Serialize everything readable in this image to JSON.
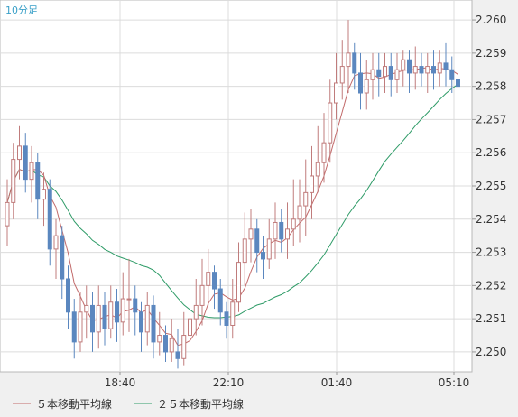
{
  "chart_data": {
    "type": "candlestick",
    "title": "10分足",
    "xlabel": "",
    "ylabel": "",
    "x_ticks": [
      "18:40",
      "22:10",
      "01:40",
      "05:10"
    ],
    "ylim": [
      2.2494,
      2.2606
    ],
    "y_ticks": [
      "2.250",
      "2.251",
      "2.252",
      "2.253",
      "2.254",
      "2.255",
      "2.256",
      "2.257",
      "2.258",
      "2.259",
      "2.260"
    ],
    "grid": true,
    "legend": "bottom-left",
    "legend_items": [
      {
        "label": "５本移動平均線",
        "color": "#c26a6a"
      },
      {
        "label": "２５本移動平均線",
        "color": "#2e9b67"
      }
    ],
    "colors": {
      "up": "#c07c7c",
      "down": "#5b87bf",
      "ma5": "#c26a6a",
      "ma25": "#2e9b67"
    },
    "candles": [
      [
        2.2538,
        2.2545,
        2.2532,
        2.2552
      ],
      [
        2.2545,
        2.2558,
        2.254,
        2.2563
      ],
      [
        2.2558,
        2.2562,
        2.2552,
        2.2568
      ],
      [
        2.2562,
        2.2552,
        2.2548,
        2.2566
      ],
      [
        2.2552,
        2.2557,
        2.2545,
        2.2562
      ],
      [
        2.2557,
        2.2546,
        2.254,
        2.256
      ],
      [
        2.2546,
        2.2549,
        2.2538,
        2.2554
      ],
      [
        2.2549,
        2.2531,
        2.2526,
        2.2552
      ],
      [
        2.2531,
        2.2535,
        2.2522,
        2.254
      ],
      [
        2.2535,
        2.2522,
        2.2516,
        2.2538
      ],
      [
        2.2522,
        2.2512,
        2.2507,
        2.2526
      ],
      [
        2.2512,
        2.2503,
        2.2498,
        2.2516
      ],
      [
        2.2503,
        2.2512,
        2.25,
        2.2518
      ],
      [
        2.2512,
        2.2514,
        2.2504,
        2.252
      ],
      [
        2.2514,
        2.2506,
        2.25,
        2.2518
      ],
      [
        2.2506,
        2.2514,
        2.2501,
        2.252
      ],
      [
        2.2514,
        2.2507,
        2.2502,
        2.2518
      ],
      [
        2.2507,
        2.2515,
        2.2504,
        2.252
      ],
      [
        2.2515,
        2.2509,
        2.2503,
        2.2519
      ],
      [
        2.2509,
        2.2516,
        2.2505,
        2.2524
      ],
      [
        2.2516,
        2.2516,
        2.2506,
        2.2528
      ],
      [
        2.2516,
        2.2512,
        2.2505,
        2.252
      ],
      [
        2.2512,
        2.2506,
        2.25,
        2.2515
      ],
      [
        2.2506,
        2.2514,
        2.2502,
        2.2518
      ],
      [
        2.2514,
        2.2503,
        2.2498,
        2.2517
      ],
      [
        2.2503,
        2.2505,
        2.2499,
        2.2512
      ],
      [
        2.2505,
        2.25,
        2.2497,
        2.2508
      ],
      [
        2.25,
        2.2504,
        2.2497,
        2.251
      ],
      [
        2.25,
        2.2498,
        2.2495,
        2.2507
      ],
      [
        2.2498,
        2.2505,
        2.2496,
        2.2512
      ],
      [
        2.2505,
        2.251,
        2.25,
        2.2516
      ],
      [
        2.251,
        2.2514,
        2.2505,
        2.2522
      ],
      [
        2.2514,
        2.252,
        2.2508,
        2.2528
      ],
      [
        2.252,
        2.2524,
        2.2514,
        2.2531
      ],
      [
        2.2524,
        2.2519,
        2.2513,
        2.2526
      ],
      [
        2.2519,
        2.2512,
        2.2508,
        2.2522
      ],
      [
        2.2512,
        2.2508,
        2.2504,
        2.2515
      ],
      [
        2.2508,
        2.2515,
        2.2504,
        2.2522
      ],
      [
        2.2515,
        2.2527,
        2.2512,
        2.2533
      ],
      [
        2.2527,
        2.2534,
        2.252,
        2.2542
      ],
      [
        2.2534,
        2.2537,
        2.2527,
        2.2543
      ],
      [
        2.2537,
        2.253,
        2.2524,
        2.254
      ],
      [
        2.253,
        2.2528,
        2.2522,
        2.2535
      ],
      [
        2.2528,
        2.2534,
        2.2525,
        2.254
      ],
      [
        2.2534,
        2.2539,
        2.2528,
        2.2545
      ],
      [
        2.2539,
        2.2534,
        2.253,
        2.2543
      ],
      [
        2.2534,
        2.2537,
        2.2528,
        2.2545
      ],
      [
        2.2537,
        2.254,
        2.2532,
        2.2552
      ],
      [
        2.254,
        2.2544,
        2.2533,
        2.2552
      ],
      [
        2.2544,
        2.2548,
        2.2535,
        2.2558
      ],
      [
        2.2548,
        2.2553,
        2.254,
        2.2562
      ],
      [
        2.2553,
        2.2557,
        2.2548,
        2.2568
      ],
      [
        2.2557,
        2.2563,
        2.2551,
        2.2572
      ],
      [
        2.2563,
        2.2575,
        2.2557,
        2.2582
      ],
      [
        2.2575,
        2.2581,
        2.257,
        2.259
      ],
      [
        2.2581,
        2.2586,
        2.2576,
        2.2594
      ],
      [
        2.2586,
        2.259,
        2.2578,
        2.26
      ],
      [
        2.259,
        2.2584,
        2.2579,
        2.2593
      ],
      [
        2.2584,
        2.2578,
        2.2573,
        2.259
      ],
      [
        2.2578,
        2.2582,
        2.2573,
        2.2588
      ],
      [
        2.2582,
        2.2585,
        2.2576,
        2.259
      ],
      [
        2.2585,
        2.2583,
        2.2577,
        2.259
      ],
      [
        2.2583,
        2.2586,
        2.2578,
        2.259
      ],
      [
        2.2586,
        2.2582,
        2.2577,
        2.259
      ],
      [
        2.2582,
        2.2585,
        2.2578,
        2.259
      ],
      [
        2.2585,
        2.2588,
        2.258,
        2.2591
      ],
      [
        2.2588,
        2.2584,
        2.2578,
        2.2591
      ],
      [
        2.2584,
        2.2586,
        2.2579,
        2.2592
      ],
      [
        2.2586,
        2.2584,
        2.258,
        2.259
      ],
      [
        2.2584,
        2.2586,
        2.2578,
        2.259
      ],
      [
        2.2586,
        2.2584,
        2.2579,
        2.2591
      ],
      [
        2.2584,
        2.2587,
        2.258,
        2.2591
      ],
      [
        2.2587,
        2.2585,
        2.258,
        2.2593
      ],
      [
        2.2585,
        2.2582,
        2.2578,
        2.2589
      ],
      [
        2.2582,
        2.258,
        2.2576,
        2.2585
      ]
    ]
  }
}
